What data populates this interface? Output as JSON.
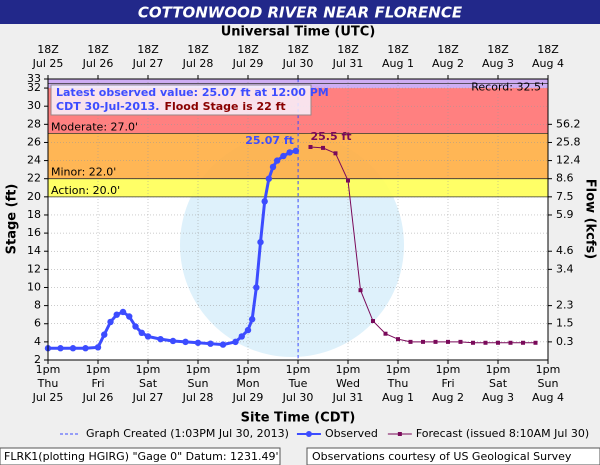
{
  "chart_data": {
    "type": "line",
    "title": "COTTONWOOD RIVER NEAR FLORENCE",
    "top_axis_label": "Universal Time (UTC)",
    "x_axis_label": "Site Time (CDT)",
    "y_axis_label": "Stage (ft)",
    "y2_axis_label": "Flow (kcfs)",
    "xlim": [
      "2013-07-25T13:00",
      "2013-08-04T13:00"
    ],
    "ylim": [
      2,
      33
    ],
    "yticks": [
      2,
      4,
      6,
      8,
      10,
      12,
      14,
      16,
      18,
      20,
      22,
      24,
      26,
      28,
      30,
      32,
      33
    ],
    "xticks": [
      {
        "value": "2013-07-25T13:00",
        "label": "1pm",
        "day": "Thu",
        "date": "Jul 25",
        "utc": "18Z"
      },
      {
        "value": "2013-07-26T13:00",
        "label": "1pm",
        "day": "Fri",
        "date": "Jul 26",
        "utc": "18Z"
      },
      {
        "value": "2013-07-27T13:00",
        "label": "1pm",
        "day": "Sat",
        "date": "Jul 27",
        "utc": "18Z"
      },
      {
        "value": "2013-07-28T13:00",
        "label": "1pm",
        "day": "Sun",
        "date": "Jul 28",
        "utc": "18Z"
      },
      {
        "value": "2013-07-29T13:00",
        "label": "1pm",
        "day": "Mon",
        "date": "Jul 29",
        "utc": "18Z"
      },
      {
        "value": "2013-07-30T13:00",
        "label": "1pm",
        "day": "Tue",
        "date": "Jul 30",
        "utc": "18Z"
      },
      {
        "value": "2013-07-31T13:00",
        "label": "1pm",
        "day": "Wed",
        "date": "Jul 31",
        "utc": "18Z"
      },
      {
        "value": "2013-08-01T13:00",
        "label": "1pm",
        "day": "Thu",
        "date": "Aug 1",
        "utc": "18Z"
      },
      {
        "value": "2013-08-02T13:00",
        "label": "1pm",
        "day": "Fri",
        "date": "Aug 2",
        "utc": "18Z"
      },
      {
        "value": "2013-08-03T13:00",
        "label": "1pm",
        "day": "Sat",
        "date": "Aug 3",
        "utc": "18Z"
      },
      {
        "value": "2013-08-04T13:00",
        "label": "1pm",
        "day": "Sun",
        "date": "Aug 4",
        "utc": "18Z"
      }
    ],
    "flow_ticks": [
      {
        "value": 28,
        "label": "56.2"
      },
      {
        "value": 26,
        "label": "25.8"
      },
      {
        "value": 24,
        "label": "12.4"
      },
      {
        "value": 22,
        "label": "8.6"
      },
      {
        "value": 20,
        "label": "7.5"
      },
      {
        "value": 18,
        "label": "5.9"
      },
      {
        "value": 14,
        "label": "4.6"
      },
      {
        "value": 12,
        "label": "3.4"
      },
      {
        "value": 8,
        "label": "2.3"
      },
      {
        "value": 6,
        "label": "1.5"
      },
      {
        "value": 4,
        "label": "0.3"
      }
    ],
    "grid": true,
    "bands": [
      {
        "from": 32,
        "to": 33,
        "color": "#c9a4f2"
      },
      {
        "from": 27,
        "to": 32,
        "color": "#ff7272"
      },
      {
        "from": 22,
        "to": 27,
        "color": "#ffae42"
      },
      {
        "from": 20,
        "to": 22,
        "color": "#ffff55"
      }
    ],
    "stage_lines": [
      {
        "value": 32.5,
        "label": "Record: 32.5'",
        "side": "right"
      },
      {
        "value": 27,
        "label": "Moderate: 27.0'",
        "side": "left"
      },
      {
        "value": 22,
        "label": "Minor: 22.0'",
        "side": "left"
      },
      {
        "value": 20,
        "label": "Action: 20.0'",
        "side": "left"
      }
    ],
    "series": [
      {
        "name": "Observed",
        "color": "#3c4cff",
        "marker": "circle",
        "x": [
          "2013-07-25T13:00",
          "2013-07-25T19:00",
          "2013-07-26T01:00",
          "2013-07-26T07:00",
          "2013-07-26T13:00",
          "2013-07-26T16:00",
          "2013-07-26T19:00",
          "2013-07-26T22:00",
          "2013-07-27T01:00",
          "2013-07-27T04:00",
          "2013-07-27T07:00",
          "2013-07-27T10:00",
          "2013-07-27T13:00",
          "2013-07-27T19:00",
          "2013-07-28T01:00",
          "2013-07-28T07:00",
          "2013-07-28T13:00",
          "2013-07-28T19:00",
          "2013-07-29T01:00",
          "2013-07-29T07:00",
          "2013-07-29T10:00",
          "2013-07-29T13:00",
          "2013-07-29T15:00",
          "2013-07-29T17:00",
          "2013-07-29T19:00",
          "2013-07-29T21:00",
          "2013-07-29T23:00",
          "2013-07-30T01:00",
          "2013-07-30T03:00",
          "2013-07-30T06:00",
          "2013-07-30T09:00",
          "2013-07-30T12:00"
        ],
        "values": [
          3.3,
          3.3,
          3.3,
          3.3,
          3.4,
          4.8,
          6.2,
          7.0,
          7.3,
          6.8,
          5.7,
          5.0,
          4.6,
          4.3,
          4.1,
          4.0,
          3.9,
          3.8,
          3.7,
          4.0,
          4.6,
          5.3,
          6.5,
          10.0,
          15.0,
          19.5,
          22.0,
          23.3,
          24.0,
          24.5,
          24.9,
          25.07
        ]
      },
      {
        "name": "Forecast (issued 8:10AM Jul 30)",
        "color": "#7a0a5a",
        "marker": "square",
        "x": [
          "2013-07-30T19:00",
          "2013-07-31T01:00",
          "2013-07-31T07:00",
          "2013-07-31T13:00",
          "2013-07-31T19:00",
          "2013-08-01T01:00",
          "2013-08-01T07:00",
          "2013-08-01T13:00",
          "2013-08-01T19:00",
          "2013-08-02T01:00",
          "2013-08-02T07:00",
          "2013-08-02T13:00",
          "2013-08-02T19:00",
          "2013-08-03T01:00",
          "2013-08-03T07:00",
          "2013-08-03T13:00",
          "2013-08-03T19:00",
          "2013-08-04T01:00",
          "2013-08-04T07:00"
        ],
        "values": [
          25.5,
          25.4,
          24.8,
          21.8,
          9.7,
          6.3,
          4.9,
          4.3,
          4.0,
          4.0,
          4.0,
          4.0,
          4.0,
          3.9,
          3.9,
          3.9,
          3.9,
          3.9,
          3.9
        ]
      }
    ],
    "annotations": [
      {
        "text": "25.07 ft",
        "x": "2013-07-30T12:00",
        "y": 25.07,
        "color": "#3c4cff"
      },
      {
        "text": "25.5 ft",
        "x": "2013-07-30T19:00",
        "y": 25.5,
        "color": "#7a0a5a"
      }
    ],
    "created": {
      "x": "2013-07-30T13:03",
      "label": "Graph Created (1:03PM Jul 30, 2013)",
      "color": "#3c4cff"
    },
    "info_box": {
      "line1": "Latest observed value: 25.07 ft at 12:00 PM",
      "line2a": "CDT 30-Jul-2013.",
      "line2b": "Flood Stage is 22 ft"
    },
    "footer_left": "FLRK1(plotting HGIRG) \"Gage 0\" Datum: 1231.49'",
    "footer_right": "Observations courtesy of US Geological Survey"
  }
}
